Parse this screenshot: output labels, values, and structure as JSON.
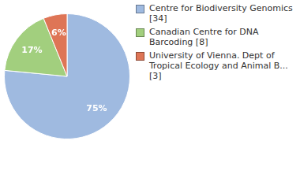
{
  "chart_data": {
    "type": "pie",
    "categories": [
      "Centre for Biodiversity Genomics [34]",
      "Canadian Centre for DNA Barcoding [8]",
      "University of Vienna. Dept of Tropical Ecology and Animal B... [3]"
    ],
    "values": [
      75,
      17,
      6
    ],
    "value_labels": [
      "75%",
      "17%",
      "6%"
    ],
    "colors": [
      "#9fbae0",
      "#a2cf7e",
      "#de7556"
    ],
    "data_labels": true,
    "legend": "right"
  }
}
